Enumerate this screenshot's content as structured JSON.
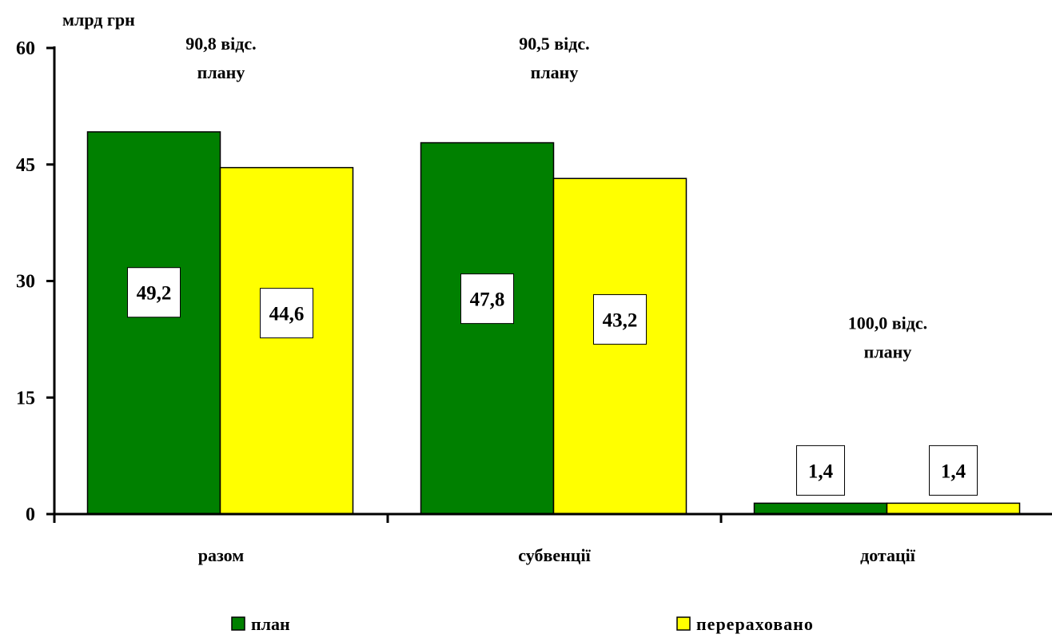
{
  "chart_data": {
    "type": "bar",
    "ylabel": "млрд грн",
    "ylim": [
      0,
      60
    ],
    "yticks": [
      "0",
      "15",
      "30",
      "45",
      "60"
    ],
    "categories": [
      "разом",
      "субвенції",
      "дотації"
    ],
    "series": [
      {
        "name": "план",
        "values": [
          49.2,
          47.8,
          1.4
        ],
        "labels": [
          "49,2",
          "47,8",
          "1,4"
        ],
        "color": "#008000"
      },
      {
        "name": "перераховано",
        "values": [
          44.6,
          43.2,
          1.4
        ],
        "labels": [
          "44,6",
          "43,2",
          "1,4"
        ],
        "color": "#ffff00"
      }
    ],
    "annotations": [
      {
        "lines": [
          "90,8 відс.",
          "плану"
        ]
      },
      {
        "lines": [
          "90,5 відс.",
          "плану"
        ]
      },
      {
        "lines": [
          "100,0 відс.",
          "плану"
        ]
      }
    ],
    "legend": "bottom",
    "grid": false
  }
}
